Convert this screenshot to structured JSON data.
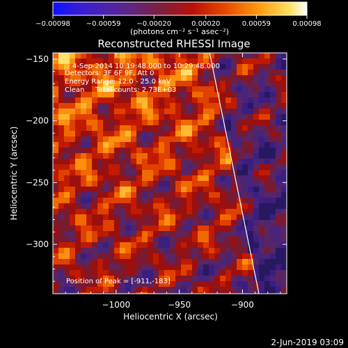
{
  "colorbar": {
    "min": -0.00098,
    "max": 0.00098,
    "tick_labels": [
      "-0.00098",
      "-0.00059",
      "-0.00020",
      "0.00020",
      "0.00059",
      "0.00098"
    ],
    "unit_label": "(photons cm⁻² s⁻¹ asec⁻²)",
    "colormap": "rainbow/heat (blue-purple-red-orange-yellow-white)"
  },
  "chart_data": {
    "type": "heatmap",
    "title": "Reconstructed RHESSI Image",
    "xlabel": "Heliocentric X (arcsec)",
    "ylabel": "Heliocentric Y (arcsec)",
    "xlim": [
      -1050,
      -865
    ],
    "ylim": [
      -340,
      -145
    ],
    "x_ticks": [
      -1000,
      -950,
      -900
    ],
    "y_ticks": [
      -150,
      -200,
      -250,
      -300
    ],
    "x_tick_labels": [
      "−1000",
      "−950",
      "−900"
    ],
    "y_tick_labels": [
      "−150",
      "−200",
      "−250",
      "−300"
    ],
    "limb_line": {
      "x": [
        -926,
        -887
      ],
      "y": [
        -145,
        -340
      ]
    },
    "peak_position": [
      -911,
      -183
    ],
    "annotations": {
      "time_range": "4-Sep-2014 10:19:48.000 to 10:29:48.000",
      "detectors": "Detectors: 3F 6F 9F, Att 0",
      "energy_range": "Energy Range: 12.0 - 25.0 keV",
      "method_counts": "Clean     Total counts: 2.73E+03",
      "peak_label": "Position of Peak = [-911,-183]"
    }
  },
  "footer": {
    "timestamp": "2-Jun-2019 03:09"
  }
}
